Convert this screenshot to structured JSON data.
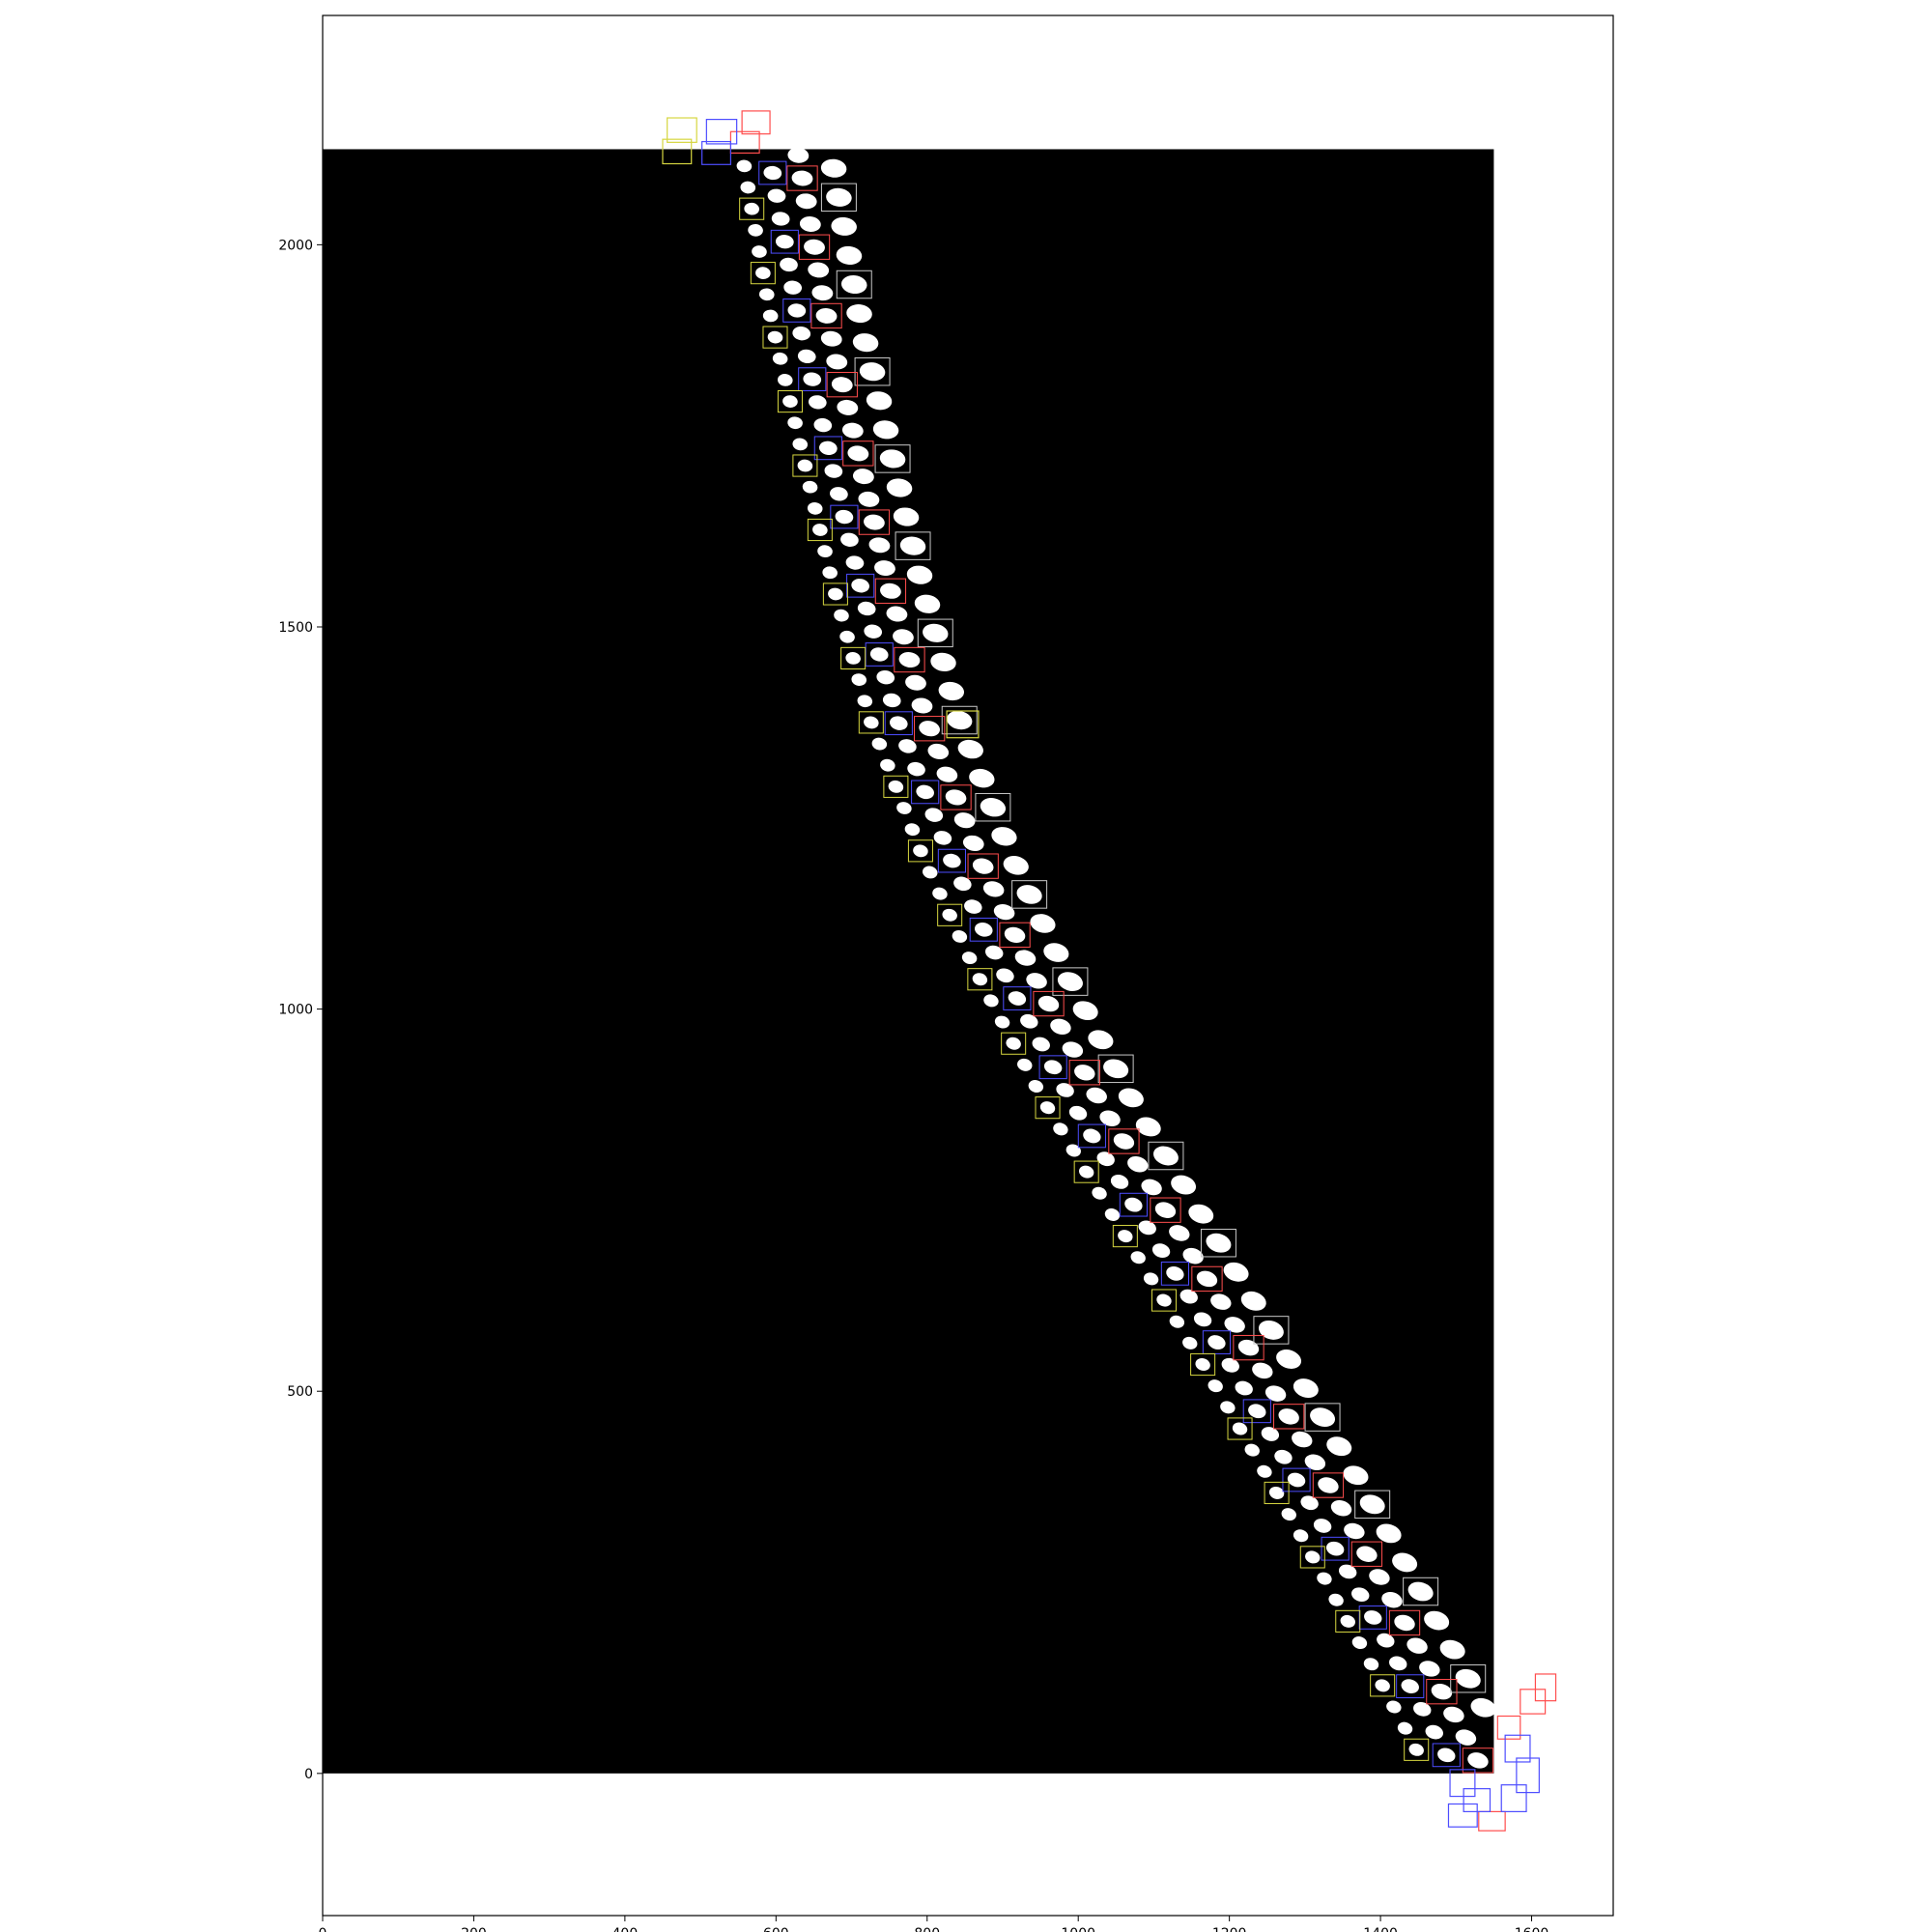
{
  "chart_data": {
    "type": "scatter",
    "title": "",
    "xlabel": "",
    "ylabel": "",
    "xlim": [
      0,
      1708
    ],
    "ylim": [
      -186,
      2300
    ],
    "image_extent": {
      "x": [
        0,
        1550
      ],
      "y": [
        0,
        2125
      ]
    },
    "image_background": "#000000",
    "grid": false,
    "legend": "none",
    "x_ticks": [
      {
        "value": 0,
        "label": "0"
      },
      {
        "value": 200,
        "label": "200"
      },
      {
        "value": 400,
        "label": "400"
      },
      {
        "value": 600,
        "label": "600"
      },
      {
        "value": 800,
        "label": "800"
      },
      {
        "value": 1000,
        "label": "1000"
      },
      {
        "value": 1200,
        "label": "1200"
      },
      {
        "value": 1400,
        "label": "1400"
      },
      {
        "value": 1600,
        "label": "1600"
      }
    ],
    "y_ticks": [
      {
        "value": 0,
        "label": "0"
      },
      {
        "value": 500,
        "label": "500"
      },
      {
        "value": 1000,
        "label": "1000"
      },
      {
        "value": 1500,
        "label": "1500"
      },
      {
        "value": 2000,
        "label": "2000"
      }
    ],
    "band_colors": {
      "cells": "#ffffff",
      "outer_row_boxes": "#c8c8c8",
      "red_row_boxes": "#ff4d4d",
      "blue_row_boxes": "#4d4dff",
      "yellow_row_boxes": "#d6d640"
    },
    "centerline": [
      [
        1500,
        0
      ],
      [
        1420,
        150
      ],
      [
        1320,
        330
      ],
      [
        1210,
        520
      ],
      [
        1100,
        700
      ],
      [
        990,
        880
      ],
      [
        900,
        1050
      ],
      [
        830,
        1200
      ],
      [
        760,
        1380
      ],
      [
        710,
        1560
      ],
      [
        670,
        1730
      ],
      [
        630,
        1900
      ],
      [
        590,
        2125
      ]
    ],
    "rows": [
      {
        "name": "outer-row",
        "offset_x": 82,
        "cell_spacing": 38,
        "cell_size": [
          34,
          24
        ],
        "box_color": "outer_row_boxes"
      },
      {
        "name": "red-row",
        "offset_x": 38,
        "cell_spacing": 30,
        "cell_size": [
          28,
          20
        ],
        "box_color": "red_row_boxes"
      },
      {
        "name": "blue-row",
        "offset_x": 0,
        "cell_spacing": 30,
        "cell_size": [
          24,
          18
        ],
        "box_color": "blue_row_boxes"
      },
      {
        "name": "yellow-row",
        "offset_x": -36,
        "cell_spacing": 28,
        "cell_size": [
          20,
          16
        ],
        "box_color": "yellow_row_boxes"
      }
    ],
    "stray_boxes": [
      {
        "color": "red_row_boxes",
        "x": [
          555,
          592
        ],
        "y": [
          2145,
          2175
        ]
      },
      {
        "color": "red_row_boxes",
        "x": [
          540,
          578
        ],
        "y": [
          2120,
          2148
        ]
      },
      {
        "color": "blue_row_boxes",
        "x": [
          508,
          548
        ],
        "y": [
          2132,
          2164
        ]
      },
      {
        "color": "blue_row_boxes",
        "x": [
          502,
          540
        ],
        "y": [
          2105,
          2135
        ]
      },
      {
        "color": "yellow_row_boxes",
        "x": [
          456,
          495
        ],
        "y": [
          2134,
          2166
        ]
      },
      {
        "color": "yellow_row_boxes",
        "x": [
          450,
          488
        ],
        "y": [
          2106,
          2138
        ]
      },
      {
        "color": "yellow_row_boxes",
        "x": [
          826,
          868
        ],
        "y": [
          1355,
          1390
        ]
      },
      {
        "color": "red_row_boxes",
        "x": [
          1585,
          1618
        ],
        "y": [
          78,
          110
        ]
      },
      {
        "color": "red_row_boxes",
        "x": [
          1605,
          1632
        ],
        "y": [
          95,
          130
        ]
      },
      {
        "color": "red_row_boxes",
        "x": [
          1555,
          1585
        ],
        "y": [
          45,
          75
        ]
      },
      {
        "color": "red_row_boxes",
        "x": [
          1530,
          1565
        ],
        "y": [
          -75,
          -50
        ]
      },
      {
        "color": "blue_row_boxes",
        "x": [
          1565,
          1598
        ],
        "y": [
          15,
          50
        ]
      },
      {
        "color": "blue_row_boxes",
        "x": [
          1580,
          1610
        ],
        "y": [
          -25,
          20
        ]
      },
      {
        "color": "blue_row_boxes",
        "x": [
          1560,
          1593
        ],
        "y": [
          -50,
          -15
        ]
      },
      {
        "color": "blue_row_boxes",
        "x": [
          1490,
          1528
        ],
        "y": [
          -70,
          -40
        ]
      },
      {
        "color": "blue_row_boxes",
        "x": [
          1510,
          1545
        ],
        "y": [
          -50,
          -20
        ]
      },
      {
        "color": "blue_row_boxes",
        "x": [
          1492,
          1525
        ],
        "y": [
          -30,
          5
        ]
      }
    ]
  }
}
